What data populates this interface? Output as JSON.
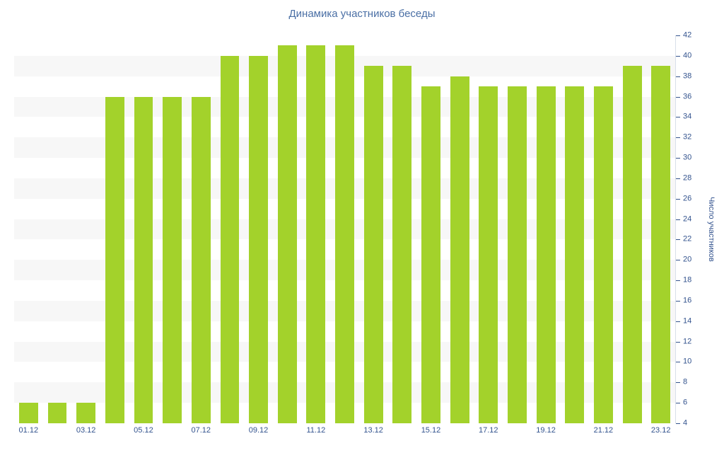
{
  "chart_data": {
    "type": "bar",
    "title": "Динамика участников беседы",
    "xlabel": "",
    "ylabel": "Число участников",
    "categories": [
      "01.12",
      "02.12",
      "03.12",
      "04.12",
      "05.12",
      "06.12",
      "07.12",
      "08.12",
      "09.12",
      "10.12",
      "11.12",
      "12.12",
      "13.12",
      "14.12",
      "15.12",
      "16.12",
      "17.12",
      "18.12",
      "19.12",
      "20.12",
      "21.12",
      "22.12",
      "23.12"
    ],
    "values": [
      6,
      6,
      6,
      36,
      36,
      36,
      36,
      40,
      40,
      41,
      41,
      41,
      39,
      39,
      37,
      38,
      37,
      37,
      37,
      37,
      37,
      39,
      39
    ],
    "x_axis_labels": [
      "01.12",
      "03.12",
      "05.12",
      "07.12",
      "09.12",
      "11.12",
      "13.12",
      "15.12",
      "17.12",
      "19.12",
      "21.12",
      "23.12"
    ],
    "ylim": [
      4,
      42
    ],
    "y_tick_interval": 2,
    "y_axis_position": "right",
    "grid": "alternating horizontal bands",
    "legend": "none",
    "colors": {
      "bar": "#a3d22b",
      "band": "#f7f7f7",
      "title": "#4a6fa5",
      "axis_label": "#33538e",
      "axis_line": "#d8dfea"
    }
  }
}
